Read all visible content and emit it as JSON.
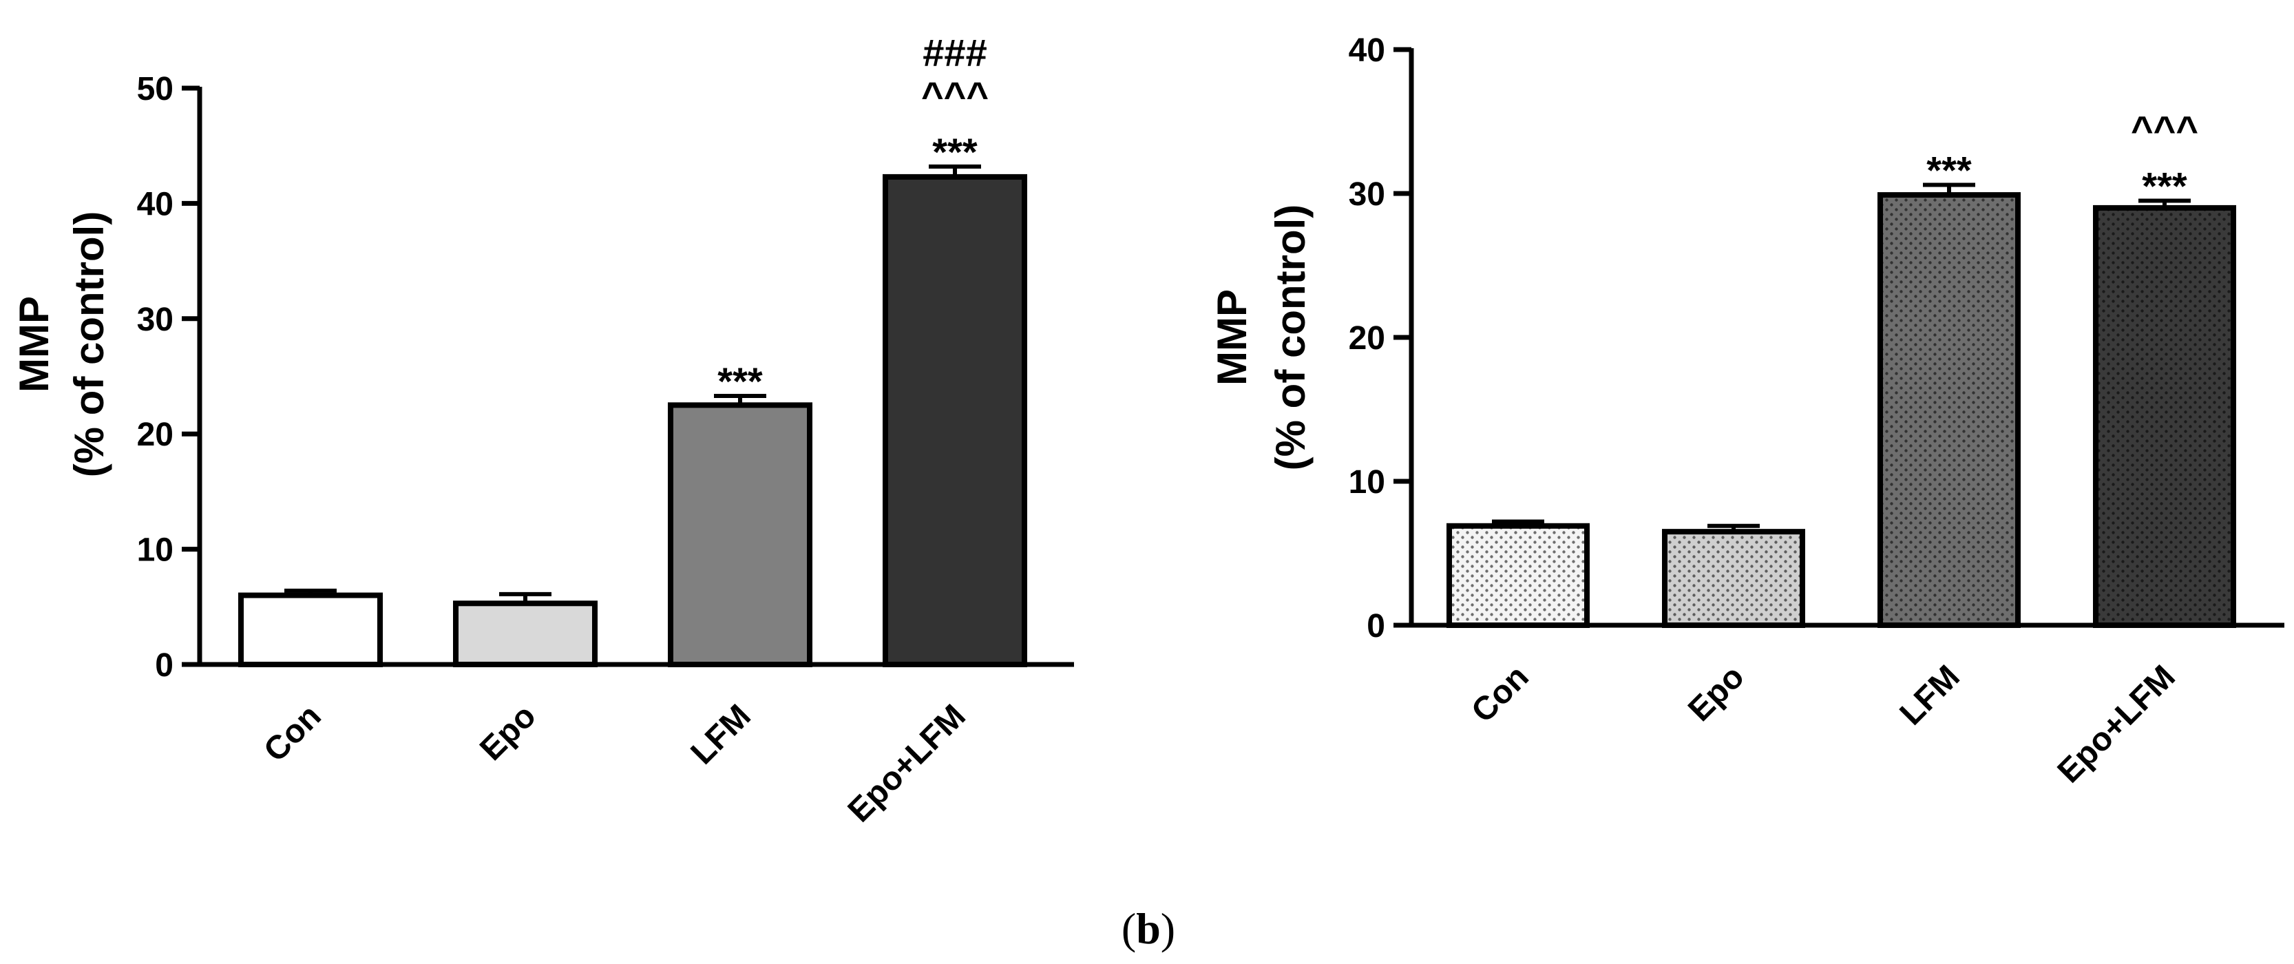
{
  "caption": {
    "open": "(",
    "letter": "b",
    "close": ")"
  },
  "chart_data": [
    {
      "type": "bar",
      "ylabel": [
        "MMP",
        "(% of control)"
      ],
      "ylim": [
        0,
        50
      ],
      "yticks": [
        0,
        10,
        20,
        30,
        40,
        50
      ],
      "categories": [
        "Con",
        "Epo",
        "LFM",
        "Epo+LFM"
      ],
      "values": [
        6,
        5.3,
        22.5,
        42.3
      ],
      "errors": [
        0.4,
        0.8,
        0.8,
        0.9
      ],
      "fills": [
        "#ffffff",
        "#d9d9d9",
        "#808080",
        "#333333"
      ],
      "patterned": false,
      "significance": [
        [],
        [],
        [
          "***"
        ],
        [
          "***",
          "^^^",
          "###"
        ]
      ]
    },
    {
      "type": "bar",
      "ylabel": [
        "MMP",
        "(% of control)"
      ],
      "ylim": [
        0,
        40
      ],
      "yticks": [
        0,
        10,
        20,
        30,
        40
      ],
      "categories": [
        "Con",
        "Epo",
        "LFM",
        "Epo+LFM"
      ],
      "values": [
        6.9,
        6.5,
        29.9,
        29
      ],
      "errors": [
        0.3,
        0.4,
        0.7,
        0.5
      ],
      "fills": [
        "#f4f4f4",
        "#cfcfcf",
        "#6e6e6e",
        "#3a3a3a"
      ],
      "patterned": true,
      "significance": [
        [],
        [],
        [
          "***"
        ],
        [
          "***",
          "^^^"
        ]
      ]
    }
  ]
}
